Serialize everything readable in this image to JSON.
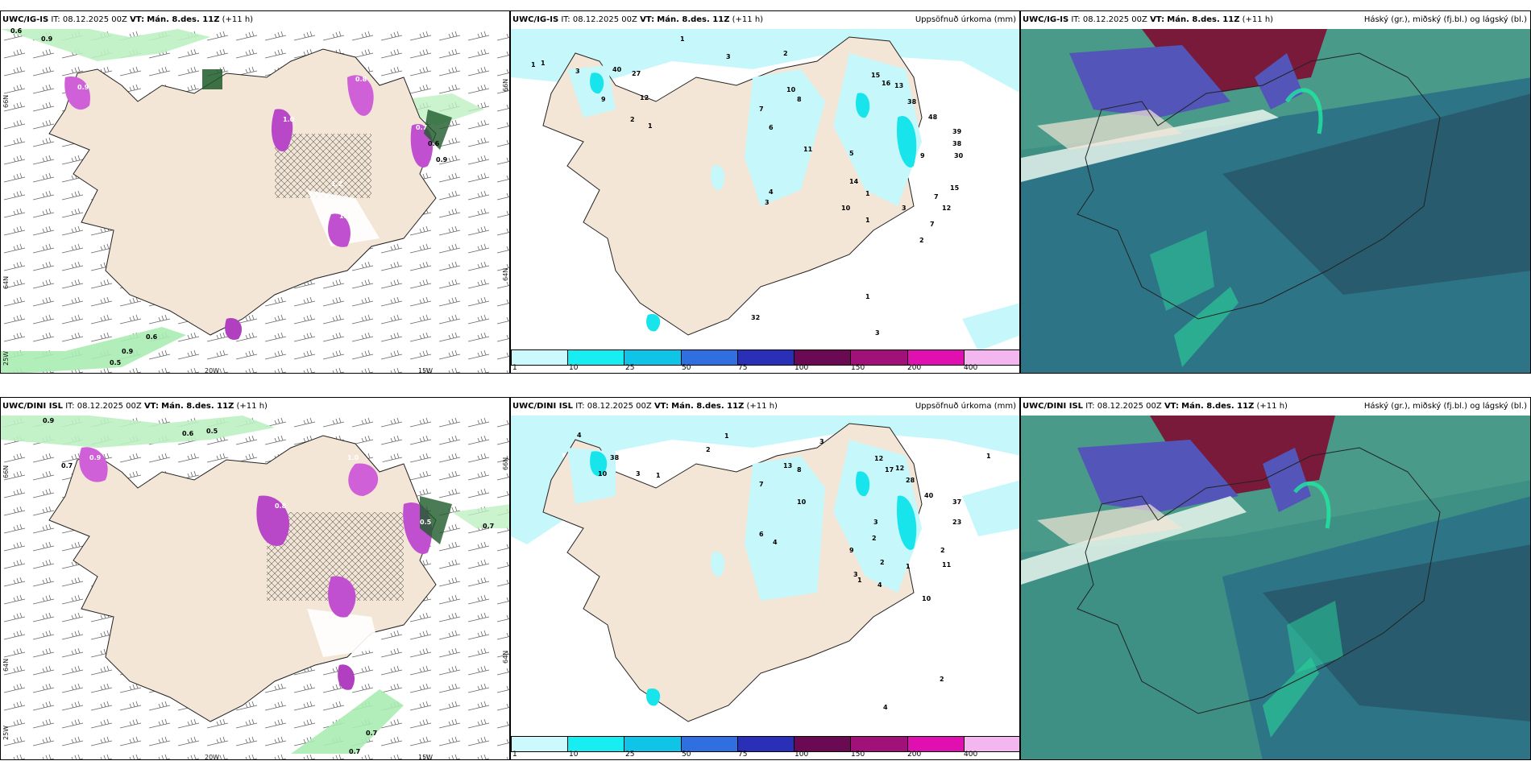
{
  "rows": [
    {
      "model": "UWC/IG-IS",
      "panels": {
        "left": {
          "model": "UWC/IG-IS",
          "it": "IT: 08.12.2025 00Z",
          "vt_prefix": "VT:",
          "vt": "Mán. 8.des. 11Z",
          "lead": "(+11 h)"
        },
        "mid": {
          "model": "UWC/IG-IS",
          "it": "IT: 08.12.2025 00Z",
          "vt_prefix": "VT:",
          "vt": "Mán. 8.des. 11Z",
          "lead": "(+11 h)",
          "title_right": "Uppsöfnuð úrkoma (mm)"
        },
        "right": {
          "model": "UWC/IG-IS",
          "it": "IT: 08.12.2025 00Z",
          "vt_prefix": "VT:",
          "vt": "Mán. 8.des. 11Z",
          "lead": "(+11 h)",
          "title_right": "Háský (gr.), miðský (fj.bl.) og lágský (bl.)"
        }
      },
      "left_numbers": [
        "0.6",
        "0.9",
        "0.6",
        "0.9",
        "0.5",
        "0.8",
        "0.7",
        "1.2",
        "1.0",
        "0.9",
        "1.1",
        "0.7",
        "0.6",
        "0.9"
      ],
      "mid_numbers": [
        "1",
        "3",
        "2",
        "1",
        "1",
        "3",
        "40",
        "27",
        "12",
        "9",
        "2",
        "1",
        "15",
        "16",
        "13",
        "38",
        "48",
        "39",
        "38",
        "30",
        "15",
        "10",
        "8",
        "7",
        "6",
        "9",
        "11",
        "5",
        "14",
        "10",
        "12",
        "7",
        "2",
        "1",
        "4",
        "3",
        "7",
        "1",
        "3",
        "32",
        "1",
        "3"
      ]
    },
    {
      "model": "UWC/DINI ISL",
      "panels": {
        "left": {
          "model": "UWC/DINI ISL",
          "it": "IT: 08.12.2025 00Z",
          "vt_prefix": "VT:",
          "vt": "Mán. 8.des. 11Z",
          "lead": "(+11 h)"
        },
        "mid": {
          "model": "UWC/DINI ISL",
          "it": "IT: 08.12.2025 00Z",
          "vt_prefix": "VT:",
          "vt": "Mán. 8.des. 11Z",
          "lead": "(+11 h)",
          "title_right": "Uppsöfnuð úrkoma (mm)"
        },
        "right": {
          "model": "UWC/DINI ISL",
          "it": "IT: 08.12.2025 00Z",
          "vt_prefix": "VT:",
          "vt": "Mán. 8.des. 11Z",
          "lead": "(+11 h)",
          "title_right": "Háský (gr.), miðský (fj.bl.) og lágský (bl.)"
        }
      },
      "left_numbers": [
        "0.9",
        "0.6",
        "0.5",
        "0.7",
        "0.7",
        "1.0",
        "0.7",
        "0.7",
        "0.9",
        "1.0",
        "0.5",
        "0.8"
      ],
      "mid_numbers": [
        "4",
        "1",
        "2",
        "3",
        "1",
        "38",
        "10",
        "3",
        "1",
        "7",
        "8",
        "13",
        "12",
        "17",
        "12",
        "28",
        "40",
        "37",
        "23",
        "10",
        "2",
        "9",
        "6",
        "4",
        "3",
        "2",
        "1",
        "11",
        "10",
        "4",
        "1",
        "3",
        "2",
        "4",
        "2"
      ]
    }
  ],
  "axis_labels": {
    "lat_66": "66N",
    "lat_64": "64N",
    "lat_bottom": "25W",
    "lon_20w": "20W",
    "lon_15w": "15W",
    "lat_right_66": "66N",
    "lat_right_64": "64N"
  },
  "colorbar": {
    "ticks": [
      "1",
      "10",
      "25",
      "50",
      "75",
      "100",
      "150",
      "200",
      "400"
    ],
    "colors": [
      "#ccfafc",
      "#18eef2",
      "#10c4e8",
      "#2f6fe0",
      "#2a2fb8",
      "#6a0a52",
      "#a0127a",
      "#e010b0",
      "#f3b6ef"
    ]
  },
  "colors": {
    "land": "#f3e6d6",
    "precip_light": "#c6f8fb",
    "precip_mid": "#18e4ec",
    "precip_pink": "#d060d8",
    "snow_green": "#8ee59a",
    "cloud_teal": "#3e8f84",
    "cloud_dark": "#27596a",
    "cloud_red": "#7a1a3a",
    "cloud_blue": "#5356b8"
  }
}
